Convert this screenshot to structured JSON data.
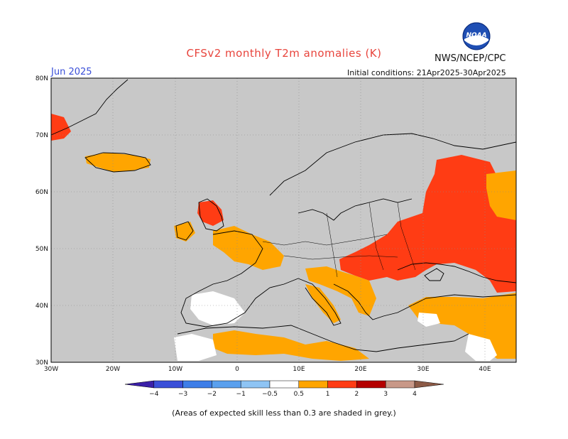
{
  "header": {
    "title": "CFSv2 monthly T2m anomalies (K)",
    "agency": "NWS/NCEP/CPC",
    "valid_month": "Jun 2025",
    "initial_conditions": "Initial conditions: 21Apr2025-30Apr2025",
    "logo_text": "NOAA"
  },
  "map": {
    "lat_labels": [
      "80N",
      "70N",
      "60N",
      "50N",
      "40N",
      "30N"
    ],
    "lon_labels": [
      "30W",
      "20W",
      "10W",
      "0",
      "10E",
      "20E",
      "30E",
      "40E"
    ],
    "land_color": "#c8c8c8",
    "ocean_color": "#c8c8c8"
  },
  "legend": {
    "labels": [
      "−4",
      "−3",
      "−2",
      "−1",
      "−0.5",
      "0.5",
      "1",
      "2",
      "3",
      "4"
    ],
    "colors": [
      "#3a1fa8",
      "#3a4fd8",
      "#3e7ee8",
      "#5aa0ee",
      "#8ec4f4",
      "#ffffff",
      "#ffa500",
      "#ff3c14",
      "#b40000",
      "#c89888",
      "#8c5a46"
    ]
  },
  "footnote": "(Areas of expected skill less than 0.3 are shaded in grey.)"
}
